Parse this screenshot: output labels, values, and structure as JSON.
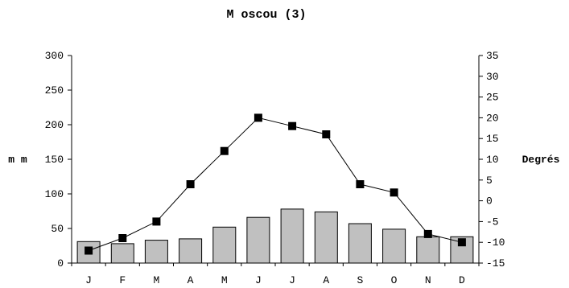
{
  "chart_data": {
    "type": "bar+line",
    "title": "M oscou (3)",
    "ylabel_left": "m m",
    "ylabel_right": "Degrés",
    "categories": [
      "J",
      "F",
      "M",
      "A",
      "M",
      "J",
      "J",
      "A",
      "S",
      "O",
      "N",
      "D"
    ],
    "ylim_left": [
      0,
      300
    ],
    "yticks_left": [
      0,
      50,
      100,
      150,
      200,
      250,
      300
    ],
    "ylim_right": [
      -15,
      35
    ],
    "yticks_right": [
      -15,
      -10,
      -5,
      0,
      5,
      10,
      15,
      20,
      25,
      30,
      35
    ],
    "grid": false,
    "series": [
      {
        "kind": "bar",
        "axis": "left",
        "color": "#c0c0c0",
        "values": [
          31,
          28,
          33,
          35,
          52,
          66,
          78,
          74,
          57,
          49,
          38,
          38
        ]
      },
      {
        "kind": "line",
        "axis": "right",
        "color": "#000000",
        "marker": "square",
        "values": [
          -12,
          -9,
          -5,
          4,
          12,
          20,
          18,
          16,
          4,
          2,
          -8,
          -10
        ]
      }
    ]
  }
}
